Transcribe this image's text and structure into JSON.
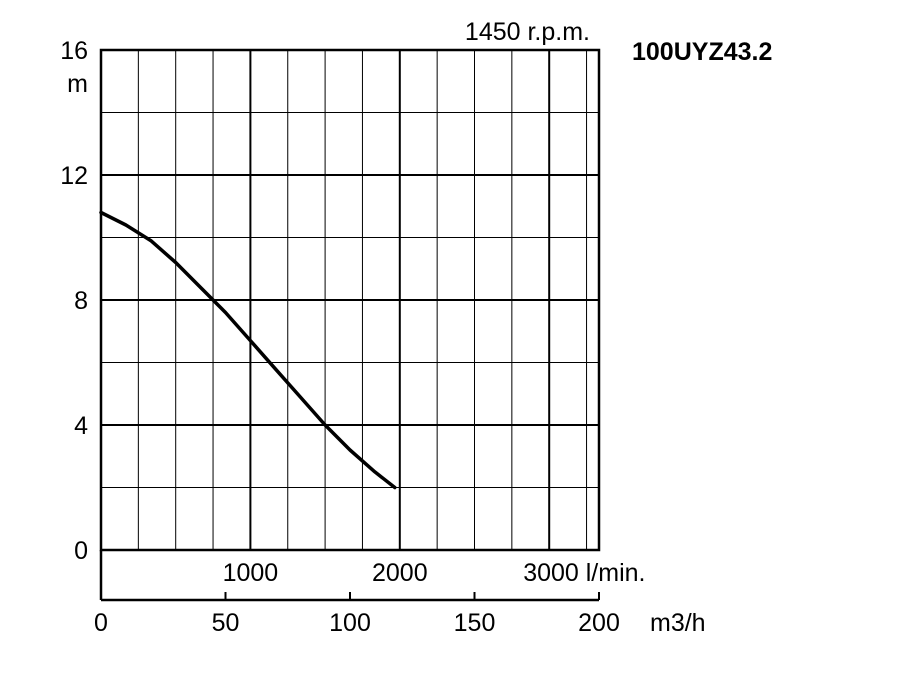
{
  "chart_data": {
    "type": "line",
    "title": "100UYZ43.2",
    "speed_label": "1450 r.p.m.",
    "ylabel": "m",
    "ylim": [
      0,
      16
    ],
    "yticks": [
      "0",
      "4",
      "8",
      "12",
      "16"
    ],
    "lpm_ticks": [
      "1000",
      "2000",
      "3000 l/min."
    ],
    "lpm_values": [
      1000,
      2000,
      3000
    ],
    "xlim_m3h": [
      0,
      200
    ],
    "m3h_ticks": [
      "0",
      "50",
      "100",
      "150",
      "200"
    ],
    "m3h_values": [
      0,
      50,
      100,
      150,
      200
    ],
    "xlabel": "m3/h",
    "grid": true,
    "series": [
      {
        "x": [
          0,
          10,
          20,
          30,
          40,
          50,
          60,
          70,
          80,
          90,
          100,
          110,
          118
        ],
        "y": [
          10.8,
          10.4,
          9.9,
          9.2,
          8.4,
          7.6,
          6.7,
          5.8,
          4.9,
          4.0,
          3.2,
          2.5,
          2.0
        ]
      }
    ]
  }
}
